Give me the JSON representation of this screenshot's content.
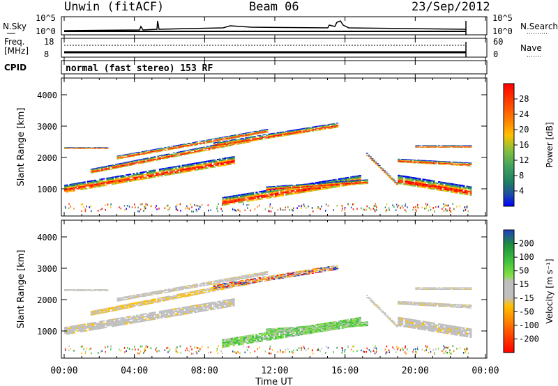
{
  "header": {
    "site": "Unwin (fitACF)",
    "beam": "Beam 06",
    "date": "23/Sep/2012"
  },
  "nsky_panel": {
    "left_label": "N.Sky",
    "right_label": "N.Search",
    "ticks": [
      "10^5",
      "10^0"
    ]
  },
  "freq_panel": {
    "left_label_1": "Freq.",
    "left_label_2": "[MHz]",
    "left_ticks": [
      "18",
      "8"
    ],
    "right_label": "Nave",
    "right_ticks": [
      "60",
      "0"
    ]
  },
  "cpid": {
    "label": "CPID",
    "text": "normal (fast stereo) 153 RF"
  },
  "chart_data": [
    {
      "type": "heatmap",
      "title": "",
      "ylabel": "Slant Range [km]",
      "xlabel": "",
      "ylim": [
        200,
        4600
      ],
      "y_ticks": [
        "1000",
        "2000",
        "3000",
        "4000"
      ],
      "colorbar": {
        "label": "Power [dB]",
        "ticks": [
          "28",
          "24",
          "20",
          "16",
          "12",
          "8",
          "4"
        ]
      },
      "echo_bands": [
        {
          "t_start": 0.0,
          "t_end": 9.5,
          "range_start": 1000,
          "range_end": 2000
        },
        {
          "t_start": 9.0,
          "t_end": 17.0,
          "range_start": 700,
          "range_end": 1400
        },
        {
          "t_start": 19.0,
          "t_end": 23.0,
          "range_start": 1000,
          "range_end": 2000
        }
      ]
    },
    {
      "type": "heatmap",
      "title": "",
      "ylabel": "Slant Range [km]",
      "xlabel": "Time UT",
      "ylim": [
        200,
        4600
      ],
      "y_ticks": [
        "1000",
        "2000",
        "3000",
        "4000"
      ],
      "x_ticks": [
        "00:00",
        "04:00",
        "08:00",
        "12:00",
        "16:00",
        "20:00",
        "00:00"
      ],
      "colorbar": {
        "label": "Velocity [m s⁻¹]",
        "ticks": [
          "200",
          "100",
          "50",
          "15",
          "-15",
          "-50",
          "-100",
          "-200"
        ]
      }
    }
  ],
  "colors": {
    "power_scale": [
      "#ff0000",
      "#ff4000",
      "#ff8000",
      "#ffbf00",
      "#80c040",
      "#40a060",
      "#208060",
      "#1f4fa0",
      "#0000ff"
    ],
    "velocity_scale": [
      "#1f3fbf",
      "#1f8f3f",
      "#3fbf3f",
      "#80e040",
      "#bfbfbf",
      "#ffbf00",
      "#ff8000",
      "#ff4000",
      "#ff0000"
    ]
  }
}
